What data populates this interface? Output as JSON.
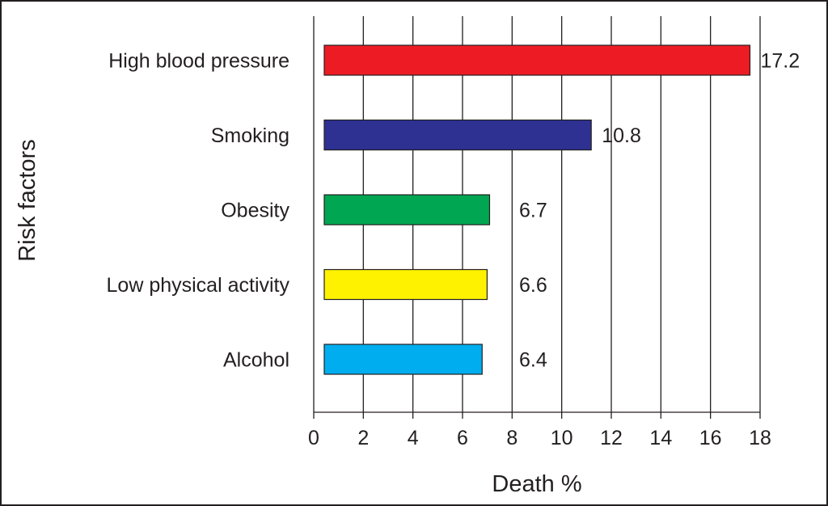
{
  "chart_data": {
    "type": "bar",
    "orientation": "horizontal",
    "categories": [
      "High blood pressure",
      "Smoking",
      "Obesity",
      "Low physical activity",
      "Alcohol"
    ],
    "values": [
      17.2,
      10.8,
      6.7,
      6.6,
      6.4
    ],
    "value_labels": [
      "17.2",
      "10.8",
      "6.7",
      "6.6",
      "6.4"
    ],
    "colors": [
      "#ed1c24",
      "#2e3192",
      "#00a651",
      "#fff200",
      "#00aeef"
    ],
    "xlabel": "Death %",
    "ylabel": "Risk factors",
    "xlim": [
      0,
      18
    ],
    "xticks": [
      "0",
      "2",
      "4",
      "6",
      "8",
      "10",
      "12",
      "14",
      "16",
      "18"
    ],
    "grid": "vertical",
    "legend": "none"
  }
}
